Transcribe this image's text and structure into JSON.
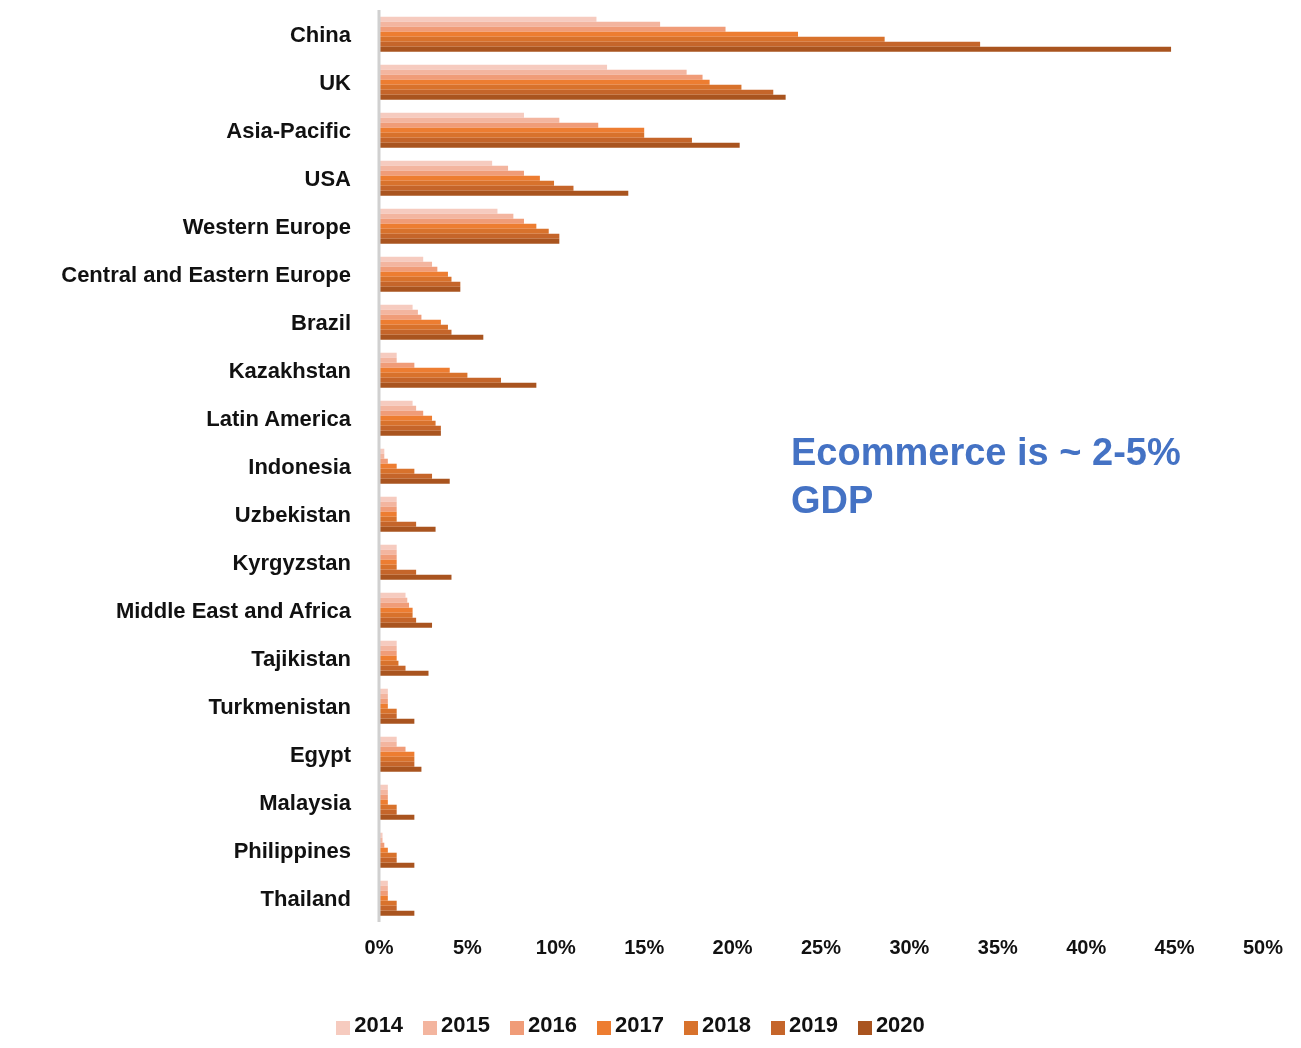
{
  "chart_data": {
    "type": "bar",
    "orientation": "horizontal",
    "categories": [
      "China",
      "UK",
      "Asia-Pacific",
      "USA",
      "Western Europe",
      "Central and Eastern Europe",
      "Brazil",
      "Kazakhstan",
      "Latin America",
      "Indonesia",
      "Uzbekistan",
      "Kyrgyzstan",
      "Middle East and Africa",
      "Tajikistan",
      "Turkmenistan",
      "Egypt",
      "Malaysia",
      "Philippines",
      "Thailand"
    ],
    "series": [
      {
        "name": "2014",
        "color": "#f6cbbf",
        "values": [
          12.3,
          12.9,
          8.2,
          6.4,
          6.7,
          2.5,
          1.9,
          1.0,
          1.9,
          0.3,
          1.0,
          1.0,
          1.5,
          1.0,
          0.5,
          1.0,
          0.5,
          0.2,
          0.5
        ]
      },
      {
        "name": "2015",
        "color": "#f3b59f",
        "values": [
          15.9,
          17.4,
          10.2,
          7.3,
          7.6,
          3.0,
          2.2,
          1.0,
          2.1,
          0.3,
          1.0,
          1.0,
          1.6,
          1.0,
          0.5,
          1.0,
          0.5,
          0.2,
          0.5
        ]
      },
      {
        "name": "2016",
        "color": "#f09c78",
        "values": [
          19.6,
          18.3,
          12.4,
          8.2,
          8.2,
          3.3,
          2.4,
          2.0,
          2.5,
          0.5,
          1.0,
          1.0,
          1.7,
          1.0,
          0.5,
          1.5,
          0.5,
          0.3,
          0.5
        ]
      },
      {
        "name": "2017",
        "color": "#ed7d31",
        "values": [
          23.7,
          18.7,
          15.0,
          9.1,
          8.9,
          3.9,
          3.5,
          4.0,
          3.0,
          1.0,
          1.0,
          1.0,
          1.9,
          1.0,
          0.5,
          2.0,
          0.5,
          0.5,
          0.5
        ]
      },
      {
        "name": "2018",
        "color": "#d8722c",
        "values": [
          28.6,
          20.5,
          15.0,
          9.9,
          9.6,
          4.1,
          3.9,
          5.0,
          3.2,
          2.0,
          1.0,
          1.0,
          1.9,
          1.1,
          1.0,
          2.0,
          1.0,
          1.0,
          1.0
        ]
      },
      {
        "name": "2019",
        "color": "#c5652a",
        "values": [
          34.0,
          22.3,
          17.7,
          11.0,
          10.2,
          4.6,
          4.1,
          6.9,
          3.5,
          3.0,
          2.1,
          2.1,
          2.1,
          1.5,
          1.0,
          2.0,
          1.0,
          1.0,
          1.0
        ]
      },
      {
        "name": "2020",
        "color": "#a9541f",
        "values": [
          44.8,
          23.0,
          20.4,
          14.1,
          10.2,
          4.6,
          5.9,
          8.9,
          3.5,
          4.0,
          3.2,
          4.1,
          3.0,
          2.8,
          2.0,
          2.4,
          2.0,
          2.0,
          2.0
        ]
      }
    ],
    "xlim": [
      0,
      50
    ],
    "xticks": [
      {
        "value": 0,
        "label": "0%"
      },
      {
        "value": 5,
        "label": "5%"
      },
      {
        "value": 10,
        "label": "10%"
      },
      {
        "value": 15,
        "label": "15%"
      },
      {
        "value": 20,
        "label": "20%"
      },
      {
        "value": 25,
        "label": "25%"
      },
      {
        "value": 30,
        "label": "30%"
      },
      {
        "value": 35,
        "label": "35%"
      },
      {
        "value": 40,
        "label": "40%"
      },
      {
        "value": 45,
        "label": "45%"
      },
      {
        "value": 50,
        "label": "50%"
      }
    ],
    "annotations": [
      "Ecommerce is ~ 2-5% GDP"
    ],
    "grid": false,
    "legend": "bottom"
  }
}
